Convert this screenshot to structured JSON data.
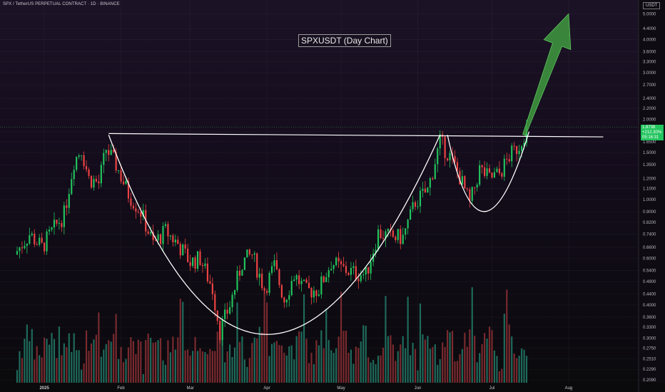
{
  "header": {
    "symbol_label": "SPX / TetherUS PERPETUAL CONTRACT · 1D · BINANCE"
  },
  "chart_title": "SPXUSDT (Day Chart)",
  "currency_label": "USDT",
  "last_price": {
    "price": "1.8738",
    "change": "+212.30%",
    "countdown": "05:16:31"
  },
  "colors": {
    "up": "#22c55e",
    "down": "#ef4444",
    "up_volume": "#1f6b5c",
    "down_volume": "#7a2a2f",
    "pattern_line": "#ffffff",
    "arrow_fill": "#3f9a3f"
  },
  "chart_data": {
    "type": "candlestick",
    "title": "SPXUSDT (Day Chart)",
    "y_scale": "log",
    "ylim": [
      0.209,
      5.3
    ],
    "y_ticks": [
      "5.0000",
      "4.4000",
      "4.0000",
      "3.6000",
      "3.3000",
      "3.0000",
      "2.7000",
      "2.4000",
      "2.2000",
      "2.0000",
      "1.8000",
      "1.6500",
      "1.5000",
      "1.3500",
      "1.2000",
      "1.1000",
      "1.0000",
      "0.9000",
      "0.8200",
      "0.7400",
      "0.6600",
      "0.6000",
      "0.5400",
      "0.4900",
      "0.4400",
      "0.4000",
      "0.3600",
      "0.3300",
      "0.3000",
      "0.2750",
      "0.2510",
      "0.2290",
      "0.2090"
    ],
    "x_range": [
      "2024-12-21",
      "2025-08-14"
    ],
    "x_ticks": [
      {
        "date": "2025-01-01",
        "label": "2025"
      },
      {
        "date": "2025-02-01",
        "label": "Feb"
      },
      {
        "date": "2025-03-01",
        "label": "Mar"
      },
      {
        "date": "2025-04-01",
        "label": "Apr"
      },
      {
        "date": "2025-05-01",
        "label": "May"
      },
      {
        "date": "2025-06-01",
        "label": "Jun"
      },
      {
        "date": "2025-07-01",
        "label": "Jul"
      },
      {
        "date": "2025-08-01",
        "label": "Aug"
      }
    ],
    "close_anchors": [
      [
        "2024-12-21",
        0.64
      ],
      [
        "2024-12-26",
        0.74
      ],
      [
        "2024-12-31",
        0.66
      ],
      [
        "2025-01-05",
        0.78
      ],
      [
        "2025-01-09",
        0.88
      ],
      [
        "2025-01-13",
        1.4
      ],
      [
        "2025-01-16",
        1.55
      ],
      [
        "2025-01-19",
        1.2
      ],
      [
        "2025-01-23",
        1.15
      ],
      [
        "2025-01-26",
        1.55
      ],
      [
        "2025-01-30",
        1.35
      ],
      [
        "2025-02-04",
        1.05
      ],
      [
        "2025-02-09",
        0.9
      ],
      [
        "2025-02-14",
        0.68
      ],
      [
        "2025-02-19",
        0.76
      ],
      [
        "2025-02-24",
        0.68
      ],
      [
        "2025-03-01",
        0.58
      ],
      [
        "2025-03-05",
        0.6
      ],
      [
        "2025-03-10",
        0.46
      ],
      [
        "2025-03-13",
        0.32
      ],
      [
        "2025-03-17",
        0.4
      ],
      [
        "2025-03-22",
        0.58
      ],
      [
        "2025-03-26",
        0.62
      ],
      [
        "2025-03-31",
        0.46
      ],
      [
        "2025-04-04",
        0.56
      ],
      [
        "2025-04-08",
        0.42
      ],
      [
        "2025-04-12",
        0.52
      ],
      [
        "2025-04-17",
        0.45
      ],
      [
        "2025-04-22",
        0.46
      ],
      [
        "2025-04-27",
        0.58
      ],
      [
        "2025-05-01",
        0.55
      ],
      [
        "2025-05-06",
        0.53
      ],
      [
        "2025-05-11",
        0.52
      ],
      [
        "2025-05-16",
        0.75
      ],
      [
        "2025-05-21",
        0.72
      ],
      [
        "2025-05-26",
        0.72
      ],
      [
        "2025-05-31",
        0.98
      ],
      [
        "2025-06-05",
        1.08
      ],
      [
        "2025-06-10",
        1.65
      ],
      [
        "2025-06-14",
        1.45
      ],
      [
        "2025-06-18",
        1.22
      ],
      [
        "2025-06-22",
        0.96
      ],
      [
        "2025-06-26",
        1.3
      ],
      [
        "2025-06-30",
        1.2
      ],
      [
        "2025-07-04",
        1.25
      ],
      [
        "2025-07-08",
        1.45
      ],
      [
        "2025-07-12",
        1.6
      ],
      [
        "2025-07-15",
        1.87
      ]
    ],
    "neckline": {
      "start": [
        "2025-01-27",
        1.77
      ],
      "end": [
        "2025-08-15",
        1.72
      ]
    },
    "cup_curve": {
      "start": [
        "2025-01-27",
        1.75
      ],
      "bottom": [
        "2025-04-01",
        0.31
      ],
      "end": [
        "2025-06-10",
        1.75
      ]
    },
    "handle_curve": {
      "start": [
        "2025-06-13",
        1.75
      ],
      "bottom": [
        "2025-06-28",
        0.9
      ],
      "end": [
        "2025-07-16",
        1.8
      ]
    },
    "projection_arrow": {
      "from": [
        "2025-07-14",
        1.75
      ],
      "to": [
        "2025-08-01",
        5.0
      ]
    },
    "last_price": 1.8738
  }
}
